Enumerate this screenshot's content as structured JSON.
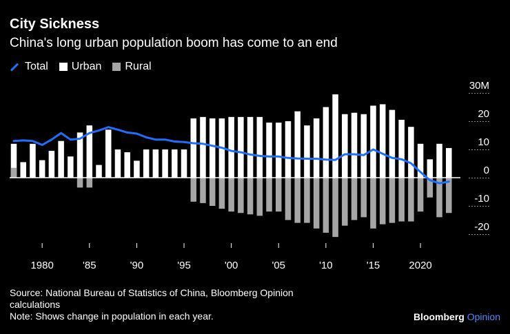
{
  "header": {
    "title": "City Sickness",
    "subtitle": "China's long urban population boom has come to an end"
  },
  "legend": [
    {
      "label": "Total",
      "color": "#1f6fff"
    },
    {
      "label": "Urban",
      "color": "#ffffff"
    },
    {
      "label": "Rural",
      "color": "#a6a6a6"
    }
  ],
  "footer": {
    "source": "Source: National Bureau of Statistics of China, Bloomberg Opinion calculations",
    "note": "Note: Shows change in population in each year."
  },
  "brand": {
    "name": "Bloomberg",
    "suffix": "Opinion"
  },
  "chart_data": {
    "type": "bar",
    "y_unit": "M",
    "ylim": [
      -25,
      30
    ],
    "yticks": [
      -20,
      -10,
      0,
      10,
      20,
      30
    ],
    "ytick_labels": [
      "-20",
      "-10",
      "0",
      "10",
      "20",
      "30M"
    ],
    "xlim": [
      1977,
      2024
    ],
    "xticks": [
      1980,
      1985,
      1990,
      1995,
      2000,
      2005,
      2010,
      2015,
      2020
    ],
    "xtick_labels": [
      "1980",
      "'85",
      "'90",
      "'95",
      "'00",
      "'05",
      "'10",
      "'15",
      "2020"
    ],
    "x": [
      1977,
      1978,
      1979,
      1980,
      1981,
      1982,
      1983,
      1984,
      1985,
      1986,
      1987,
      1988,
      1989,
      1990,
      1991,
      1992,
      1993,
      1994,
      1995,
      1996,
      1997,
      1998,
      1999,
      2000,
      2001,
      2002,
      2003,
      2004,
      2005,
      2006,
      2007,
      2008,
      2009,
      2010,
      2011,
      2012,
      2013,
      2014,
      2015,
      2016,
      2017,
      2018,
      2019,
      2020,
      2021,
      2022,
      2023,
      2024
    ],
    "series": [
      {
        "name": "Urban",
        "color": "#ffffff",
        "values": [
          12,
          5.5,
          12,
          6.2,
          9.5,
          13,
          7.5,
          16,
          18.5,
          4.5,
          17,
          10,
          9,
          6,
          10,
          10,
          10,
          10,
          10,
          21,
          21.5,
          21,
          21,
          21.5,
          21.5,
          21.5,
          21.5,
          19.5,
          19.5,
          20,
          23.5,
          18.5,
          21,
          25,
          29.5,
          22.5,
          23,
          22.5,
          25.5,
          26,
          24,
          20.5,
          18,
          12,
          6.5,
          12,
          10.5,
          null
        ]
      },
      {
        "name": "Rural",
        "color": "#a6a6a6",
        "values": [
          3.5,
          null,
          null,
          null,
          null,
          null,
          null,
          -3.5,
          -3.5,
          null,
          null,
          null,
          null,
          null,
          null,
          null,
          null,
          null,
          null,
          -8.5,
          -9,
          -10,
          -11,
          -12,
          -12.5,
          -13,
          -13.5,
          -12,
          -12,
          -15,
          -16,
          -16,
          -18,
          -19.5,
          -21,
          -17,
          -15,
          -14,
          -18,
          -16.5,
          -16,
          -15.5,
          -15.5,
          -12,
          -7,
          -14,
          -12.5,
          null
        ]
      },
      {
        "name": "Total",
        "color": "#1f6fff",
        "values": [
          13,
          13.2,
          13,
          11.6,
          13.5,
          15.8,
          13.5,
          13.8,
          15.8,
          16.7,
          17.9,
          17,
          16,
          15.6,
          14.3,
          13.5,
          13.5,
          12.8,
          12.6,
          12.2,
          12,
          11.3,
          10.6,
          9.5,
          9,
          8.2,
          7.7,
          7.5,
          7.5,
          7,
          6.8,
          6.7,
          6.7,
          6.4,
          6.3,
          8.3,
          8.3,
          8,
          10,
          8.5,
          7,
          6.5,
          5.1,
          2,
          -0.9,
          -2,
          -1.4,
          null
        ]
      }
    ]
  }
}
